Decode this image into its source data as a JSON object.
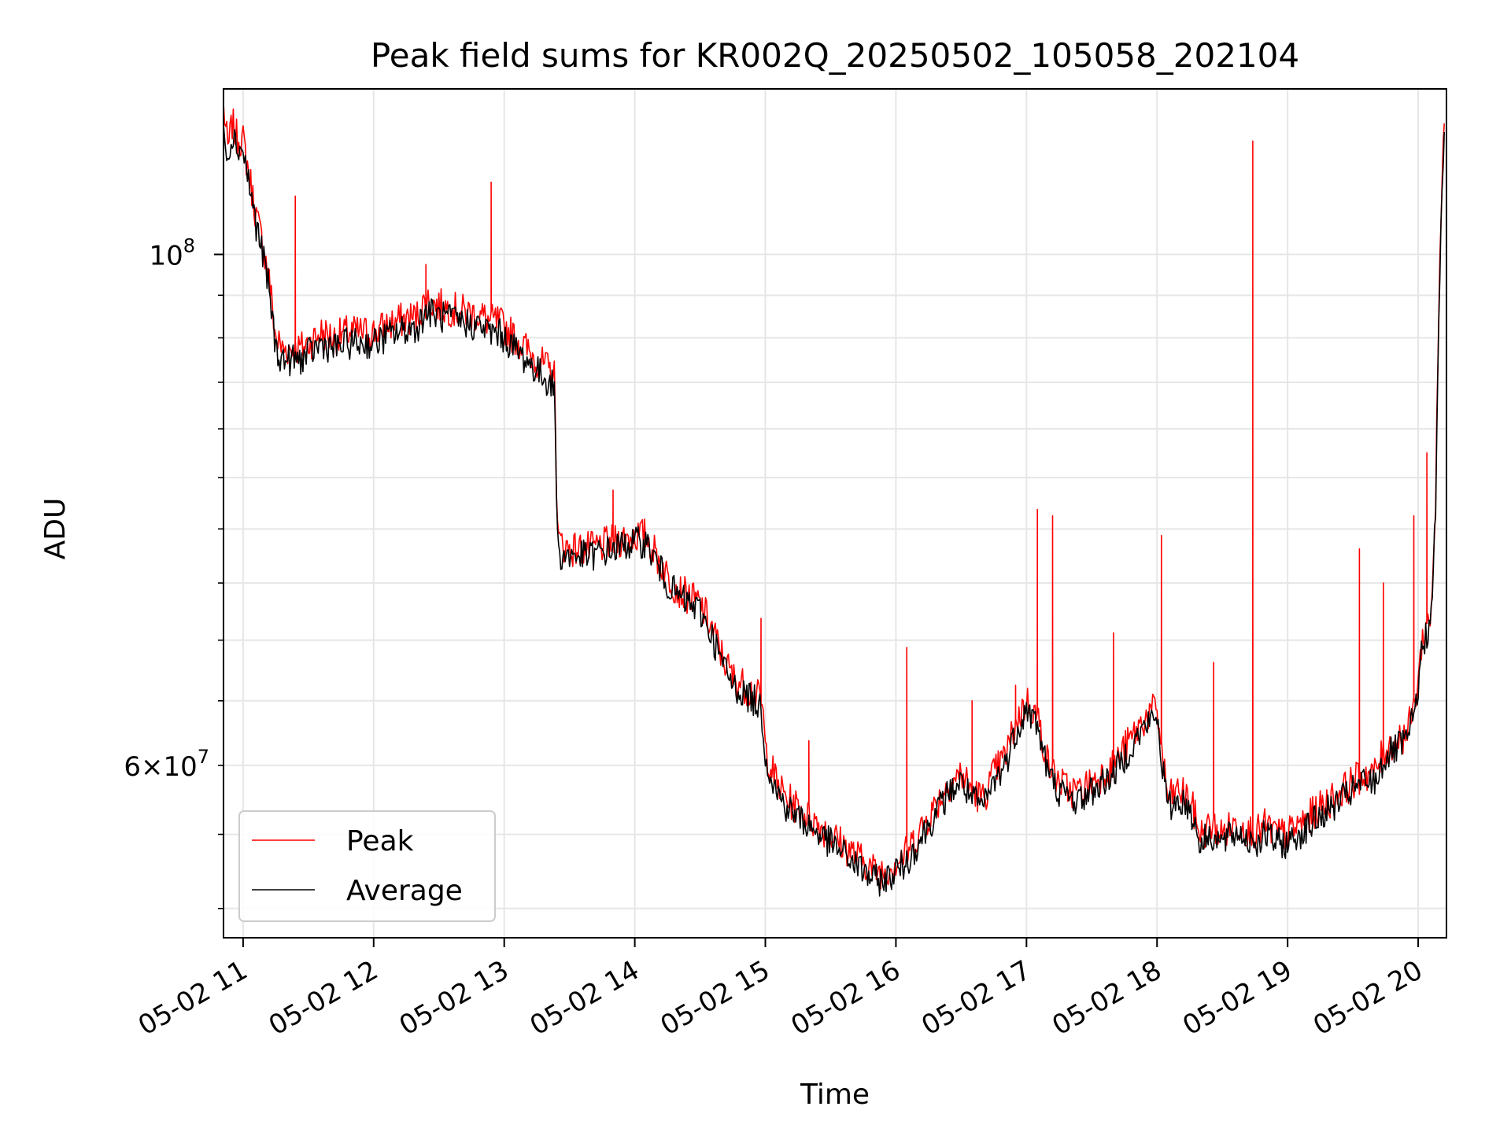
{
  "chart_data": {
    "type": "line",
    "title": "Peak field sums for KR002Q_20250502_105058_202104",
    "xlabel": "Time",
    "ylabel": "ADU",
    "x_unit": "datetime",
    "y_scale": "log",
    "xlim": [
      "2025-05-02 10:51",
      "2025-05-02 20:13"
    ],
    "ylim": [
      50500000,
      118000000
    ],
    "grid": true,
    "legend_position": "lower-left",
    "x_ticks": [
      {
        "label": "05-02 11",
        "time": "2025-05-02 11:00"
      },
      {
        "label": "05-02 12",
        "time": "2025-05-02 12:00"
      },
      {
        "label": "05-02 13",
        "time": "2025-05-02 13:00"
      },
      {
        "label": "05-02 14",
        "time": "2025-05-02 14:00"
      },
      {
        "label": "05-02 15",
        "time": "2025-05-02 15:00"
      },
      {
        "label": "05-02 16",
        "time": "2025-05-02 16:00"
      },
      {
        "label": "05-02 17",
        "time": "2025-05-02 17:00"
      },
      {
        "label": "05-02 18",
        "time": "2025-05-02 18:00"
      },
      {
        "label": "05-02 19",
        "time": "2025-05-02 19:00"
      },
      {
        "label": "05-02 20",
        "time": "2025-05-02 20:00"
      }
    ],
    "y_major_ticks": [
      {
        "base": "10",
        "exp": "8",
        "value": 100000000
      }
    ],
    "y_labeled_minor_ticks": [
      {
        "coef": "6",
        "base": "10",
        "exp": "7",
        "value": 60000000
      }
    ],
    "y_minor_ticks": [
      52000000,
      56000000,
      60000000,
      64000000,
      68000000,
      72000000,
      76000000,
      80000000,
      84000000,
      88000000,
      92000000,
      96000000
    ],
    "series": [
      {
        "name": "Peak",
        "color": "#ff0000",
        "x": [
          "10:51",
          "10:53",
          "10:55",
          "10:57",
          "11:00",
          "11:03",
          "11:06",
          "11:09",
          "11:12",
          "11:15",
          "11:18",
          "11:22",
          "11:26",
          "11:30",
          "11:36",
          "11:42",
          "11:48",
          "11:55",
          "12:00",
          "12:10",
          "12:20",
          "12:24",
          "12:30",
          "12:40",
          "12:50",
          "12:53",
          "12:57",
          "13:00",
          "13:05",
          "13:10",
          "13:15",
          "13:21",
          "13:23",
          "13:24",
          "13:25",
          "13:30",
          "13:40",
          "13:50",
          "14:00",
          "14:05",
          "14:10",
          "14:15",
          "14:20",
          "14:25",
          "14:30",
          "14:35",
          "14:40",
          "14:45",
          "14:50",
          "14:55",
          "14:58",
          "14:59",
          "15:00",
          "15:05",
          "15:10",
          "15:15",
          "15:20",
          "15:25",
          "15:30",
          "15:35",
          "15:40",
          "15:45",
          "15:50",
          "15:55",
          "16:00",
          "16:05",
          "16:10",
          "16:15",
          "16:20",
          "16:25",
          "16:30",
          "16:35",
          "16:40",
          "16:45",
          "16:50",
          "16:55",
          "17:00",
          "17:05",
          "17:10",
          "17:15",
          "17:20",
          "17:25",
          "17:30",
          "17:35",
          "17:40",
          "17:45",
          "17:50",
          "17:55",
          "18:00",
          "18:02",
          "18:05",
          "18:10",
          "18:15",
          "18:20",
          "18:25",
          "18:30",
          "18:35",
          "18:40",
          "18:42",
          "18:44",
          "18:45",
          "18:50",
          "18:55",
          "19:00",
          "19:05",
          "19:10",
          "19:15",
          "19:20",
          "19:25",
          "19:30",
          "19:35",
          "19:40",
          "19:45",
          "19:50",
          "19:55",
          "19:58",
          "20:00",
          "20:02",
          "20:04",
          "20:06",
          "20:08",
          "20:10",
          "20:12"
        ],
        "values": [
          116000000,
          111000000,
          114000000,
          112500000,
          112000000,
          108000000,
          104000000,
          101000000,
          97500000,
          92000000,
          91000000,
          91000000,
          91000000,
          91500000,
          92500000,
          92000000,
          92500000,
          92500000,
          92500000,
          93500000,
          94000000,
          95500000,
          95000000,
          94500000,
          94000000,
          93500000,
          93500000,
          93000000,
          92000000,
          91000000,
          90000000,
          89000000,
          88500000,
          80000000,
          75000000,
          74500000,
          74500000,
          75000000,
          75500000,
          75500000,
          74000000,
          72500000,
          71500000,
          71000000,
          70500000,
          69000000,
          67000000,
          65500000,
          65000000,
          64500000,
          64000000,
          63000000,
          61000000,
          59000000,
          58000000,
          57500000,
          57000000,
          56500000,
          56000000,
          55500000,
          55000000,
          54500000,
          54000000,
          54000000,
          54500000,
          55000000,
          56000000,
          57000000,
          58000000,
          59000000,
          59500000,
          58500000,
          58000000,
          59500000,
          60500000,
          62500000,
          64000000,
          63000000,
          60000000,
          59000000,
          58500000,
          58500000,
          59000000,
          59500000,
          60000000,
          61000000,
          62000000,
          63000000,
          63500000,
          61000000,
          58000000,
          58500000,
          58000000,
          56000000,
          56500000,
          56000000,
          56500000,
          56500000,
          56000000,
          56500000,
          56000000,
          56500000,
          56000000,
          56000000,
          56500000,
          57000000,
          57500000,
          58000000,
          58500000,
          59000000,
          59500000,
          59500000,
          61000000,
          61500000,
          62000000,
          63500000,
          65500000,
          68000000,
          69000000,
          70000000,
          78000000,
          100000000,
          114000000
        ],
        "spikes": [
          {
            "x": "11:24",
            "value": 106000000
          },
          {
            "x": "12:24",
            "value": 99000000
          },
          {
            "x": "12:54",
            "value": 107500000
          },
          {
            "x": "13:50",
            "value": 79000000
          },
          {
            "x": "14:58",
            "value": 69500000
          },
          {
            "x": "15:20",
            "value": 61500000
          },
          {
            "x": "16:05",
            "value": 67500000
          },
          {
            "x": "16:35",
            "value": 64000000
          },
          {
            "x": "16:55",
            "value": 65000000
          },
          {
            "x": "17:05",
            "value": 77500000
          },
          {
            "x": "17:12",
            "value": 77000000
          },
          {
            "x": "17:40",
            "value": 68500000
          },
          {
            "x": "18:02",
            "value": 75500000
          },
          {
            "x": "18:26",
            "value": 66500000
          },
          {
            "x": "18:44",
            "value": 112000000
          },
          {
            "x": "19:33",
            "value": 74500000
          },
          {
            "x": "19:44",
            "value": 72000000
          },
          {
            "x": "19:58",
            "value": 77000000
          },
          {
            "x": "20:04",
            "value": 82000000
          }
        ]
      },
      {
        "name": "Average",
        "color": "#000000",
        "x": [
          "10:51",
          "10:53",
          "10:55",
          "10:57",
          "11:00",
          "11:03",
          "11:06",
          "11:09",
          "11:12",
          "11:15",
          "11:18",
          "11:22",
          "11:26",
          "11:30",
          "11:36",
          "11:42",
          "11:48",
          "11:55",
          "12:00",
          "12:10",
          "12:20",
          "12:24",
          "12:30",
          "12:40",
          "12:50",
          "12:53",
          "12:57",
          "13:00",
          "13:05",
          "13:10",
          "13:15",
          "13:21",
          "13:23",
          "13:24",
          "13:25",
          "13:30",
          "13:40",
          "13:50",
          "14:00",
          "14:05",
          "14:10",
          "14:15",
          "14:20",
          "14:25",
          "14:30",
          "14:35",
          "14:40",
          "14:45",
          "14:50",
          "14:55",
          "14:58",
          "14:59",
          "15:00",
          "15:05",
          "15:10",
          "15:15",
          "15:20",
          "15:25",
          "15:30",
          "15:35",
          "15:40",
          "15:45",
          "15:50",
          "15:55",
          "16:00",
          "16:05",
          "16:10",
          "16:15",
          "16:20",
          "16:25",
          "16:30",
          "16:35",
          "16:40",
          "16:45",
          "16:50",
          "16:55",
          "17:00",
          "17:05",
          "17:10",
          "17:15",
          "17:20",
          "17:25",
          "17:30",
          "17:35",
          "17:40",
          "17:45",
          "17:50",
          "17:55",
          "18:00",
          "18:02",
          "18:05",
          "18:10",
          "18:15",
          "18:20",
          "18:25",
          "18:30",
          "18:35",
          "18:40",
          "18:42",
          "18:44",
          "18:45",
          "18:50",
          "18:55",
          "19:00",
          "19:05",
          "19:10",
          "19:15",
          "19:20",
          "19:25",
          "19:30",
          "19:35",
          "19:40",
          "19:45",
          "19:50",
          "19:55",
          "19:58",
          "20:00",
          "20:02",
          "20:04",
          "20:06",
          "20:08",
          "20:10",
          "20:12"
        ],
        "values": [
          115000000,
          110000000,
          113000000,
          111500000,
          111000000,
          107000000,
          103000000,
          100000000,
          96500000,
          91000000,
          90000000,
          90000000,
          90000000,
          90500000,
          91500000,
          91000000,
          91500000,
          91500000,
          91500000,
          92500000,
          93000000,
          94500000,
          94000000,
          93500000,
          93000000,
          92500000,
          92500000,
          92000000,
          91000000,
          90000000,
          89000000,
          88000000,
          87500000,
          79000000,
          74000000,
          74000000,
          74000000,
          74500000,
          75000000,
          75000000,
          73500000,
          72000000,
          71000000,
          70500000,
          70000000,
          68500000,
          66500000,
          65000000,
          64500000,
          64000000,
          63500000,
          62500000,
          60500000,
          58500000,
          57500000,
          57000000,
          56500000,
          56000000,
          55500000,
          55000000,
          54500000,
          54000000,
          53500000,
          53500000,
          54000000,
          54500000,
          55500000,
          56500000,
          57500000,
          58500000,
          59000000,
          58000000,
          57500000,
          59000000,
          60000000,
          62000000,
          63500000,
          62500000,
          59500000,
          58500000,
          58000000,
          58000000,
          58500000,
          59000000,
          59500000,
          60500000,
          61500000,
          62500000,
          63000000,
          60500000,
          57500000,
          58000000,
          57500000,
          55500000,
          56000000,
          55500000,
          56000000,
          56000000,
          55500000,
          56000000,
          55500000,
          56000000,
          55500000,
          55500000,
          56000000,
          56500000,
          57000000,
          57500000,
          58000000,
          58500000,
          59000000,
          59000000,
          60500000,
          61000000,
          61500000,
          63000000,
          65000000,
          67500000,
          68500000,
          69500000,
          77000000,
          99000000,
          113000000
        ]
      }
    ],
    "legend": [
      {
        "name": "Peak",
        "color": "#ff0000"
      },
      {
        "name": "Average",
        "color": "#000000"
      }
    ]
  }
}
